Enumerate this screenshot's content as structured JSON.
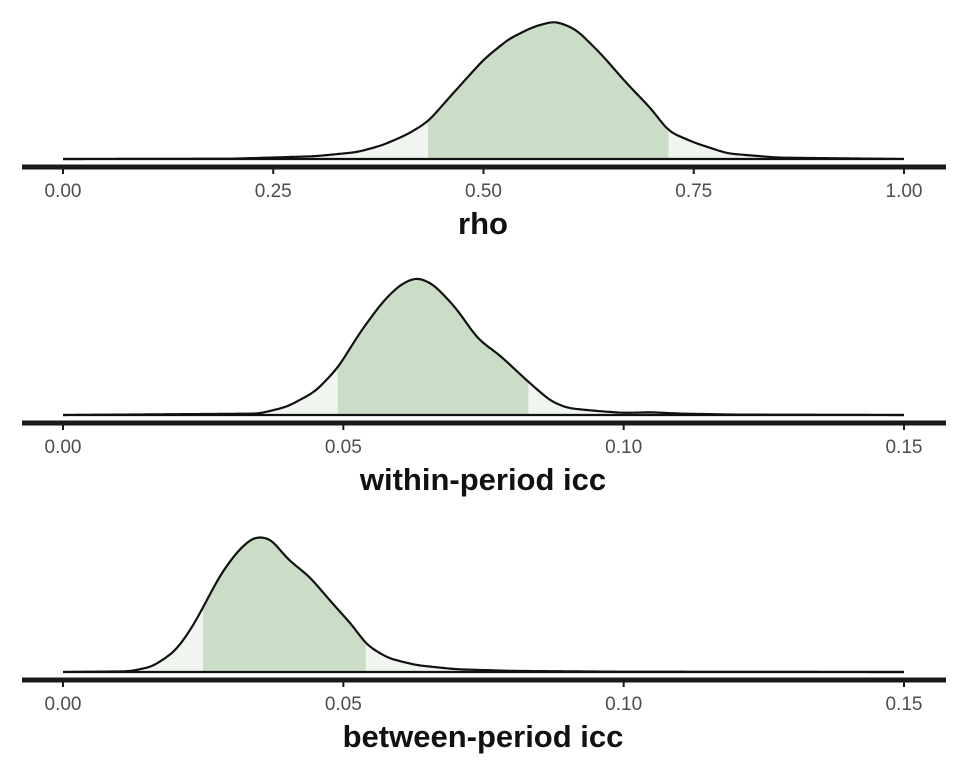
{
  "chart_data": [
    {
      "type": "area",
      "chart": "density",
      "xlabel": "rho",
      "xlim": [
        0,
        1
      ],
      "ticks": [
        0,
        0.25,
        0.5,
        0.75,
        1
      ],
      "tick_labels": [
        "0.00",
        "0.25",
        "0.50",
        "0.75",
        "1.00"
      ],
      "interval": [
        0.434,
        0.72
      ],
      "density": {
        "x": [
          0.0,
          0.2,
          0.3,
          0.35,
          0.38,
          0.41,
          0.434,
          0.46,
          0.5,
          0.53,
          0.56,
          0.585,
          0.61,
          0.64,
          0.67,
          0.7,
          0.72,
          0.75,
          0.79,
          0.85,
          1.0
        ],
        "y": [
          0.0,
          0.002,
          0.02,
          0.05,
          0.1,
          0.18,
          0.27,
          0.45,
          0.72,
          0.87,
          0.96,
          1.0,
          0.94,
          0.76,
          0.55,
          0.36,
          0.2,
          0.12,
          0.04,
          0.01,
          0.0
        ]
      },
      "colors": {
        "interval_fill": "#cbdcc7",
        "tail_fill": "#f1f5f0",
        "line": "#111111"
      }
    },
    {
      "type": "area",
      "chart": "density",
      "xlabel": "within-period icc",
      "xlim": [
        0,
        0.15
      ],
      "ticks": [
        0,
        0.05,
        0.1,
        0.15
      ],
      "tick_labels": [
        "0.00",
        "0.05",
        "0.10",
        "0.15"
      ],
      "interval": [
        0.049,
        0.083
      ],
      "density": {
        "x": [
          0.0,
          0.035,
          0.04,
          0.045,
          0.049,
          0.053,
          0.057,
          0.06,
          0.063,
          0.066,
          0.07,
          0.074,
          0.078,
          0.083,
          0.087,
          0.09,
          0.095,
          0.1,
          0.105,
          0.11,
          0.12,
          0.15
        ],
        "y": [
          0.0,
          0.01,
          0.06,
          0.17,
          0.34,
          0.6,
          0.82,
          0.94,
          1.0,
          0.95,
          0.78,
          0.55,
          0.43,
          0.24,
          0.1,
          0.05,
          0.03,
          0.015,
          0.02,
          0.01,
          0.003,
          0.0
        ]
      },
      "colors": {
        "interval_fill": "#cbdcc7",
        "tail_fill": "#f1f5f0",
        "line": "#111111"
      }
    },
    {
      "type": "area",
      "chart": "density",
      "xlabel": "between-period icc",
      "xlim": [
        0,
        0.15
      ],
      "ticks": [
        0,
        0.05,
        0.1,
        0.15
      ],
      "tick_labels": [
        "0.00",
        "0.05",
        "0.10",
        "0.15"
      ],
      "interval": [
        0.025,
        0.054
      ],
      "density": {
        "x": [
          0.0,
          0.012,
          0.016,
          0.02,
          0.023,
          0.025,
          0.028,
          0.031,
          0.034,
          0.037,
          0.04,
          0.044,
          0.048,
          0.052,
          0.054,
          0.058,
          0.063,
          0.07,
          0.08,
          0.1,
          0.15
        ],
        "y": [
          0.0,
          0.005,
          0.04,
          0.15,
          0.32,
          0.47,
          0.7,
          0.87,
          0.98,
          0.97,
          0.82,
          0.69,
          0.5,
          0.32,
          0.2,
          0.1,
          0.05,
          0.02,
          0.008,
          0.002,
          0.0
        ]
      },
      "colors": {
        "interval_fill": "#cbdcc7",
        "tail_fill": "#f1f5f0",
        "line": "#111111"
      }
    }
  ]
}
